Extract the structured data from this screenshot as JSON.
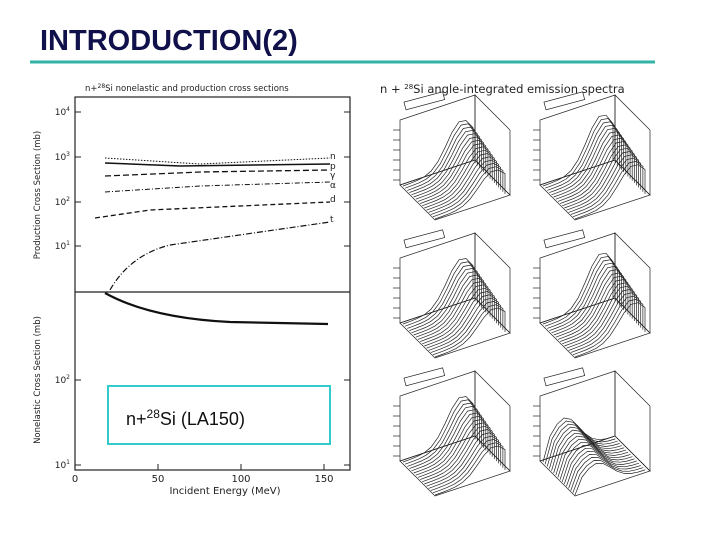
{
  "header": {
    "title": "INTRODUCTION(2)"
  },
  "left_figure": {
    "title": {
      "prefix": "n+",
      "sup": "28",
      "suffix": "Si nonelastic and production cross sections"
    },
    "y_label_top": "Production Cross Section (mb)",
    "y_label_bottom": "Nonelastic Cross Section (mb)",
    "x_label": "Incident Energy (MeV)",
    "y_ticks_top": [
      {
        "base": "10",
        "exp": "4"
      },
      {
        "base": "10",
        "exp": "3"
      },
      {
        "base": "10",
        "exp": "2"
      },
      {
        "base": "10",
        "exp": "1"
      }
    ],
    "y_ticks_bottom": [
      {
        "base": "10",
        "exp": "2"
      },
      {
        "base": "10",
        "exp": "1"
      }
    ],
    "x_ticks": [
      "0",
      "50",
      "100",
      "150"
    ],
    "series_labels": [
      "n",
      "p",
      "γ",
      "α",
      "d",
      "t"
    ]
  },
  "box": {
    "prefix": "n+",
    "sup": "28",
    "suffix": "Si  (LA150)"
  },
  "right_figure": {
    "title": {
      "prefix": "n + ",
      "sup": "28",
      "suffix": "Si angle-integrated emission spectra"
    }
  }
}
